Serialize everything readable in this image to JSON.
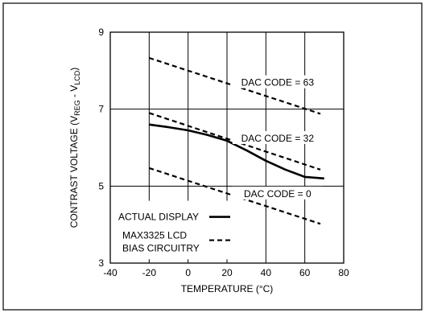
{
  "chart_data": {
    "type": "line",
    "xlabel": "TEMPERATURE (°C)",
    "ylabel": {
      "prefix": "CONTRAST VOLTAGE (V",
      "sub1": "REG",
      "mid": " - V",
      "sub2": "LCD",
      "suffix": ")"
    },
    "xlim": [
      -40,
      80
    ],
    "ylim": [
      3,
      9
    ],
    "xticks": [
      "-40",
      "-20",
      "0",
      "20",
      "40",
      "60",
      "80"
    ],
    "yticks": [
      "3",
      "5",
      "7",
      "9"
    ],
    "grid": true,
    "legend_position": "bottom-left",
    "series": [
      {
        "name": "ACTUAL DISPLAY",
        "style": "solid",
        "x": [
          -20,
          -10,
          0,
          10,
          20,
          30,
          40,
          50,
          60,
          70
        ],
        "y": [
          6.6,
          6.53,
          6.45,
          6.33,
          6.18,
          5.93,
          5.66,
          5.43,
          5.24,
          5.2
        ]
      },
      {
        "name": "DAC CODE = 63",
        "style": "dashed",
        "x": [
          -20,
          68
        ],
        "y": [
          8.33,
          6.88
        ]
      },
      {
        "name": "DAC CODE = 32",
        "style": "dashed",
        "x": [
          -20,
          68
        ],
        "y": [
          6.9,
          5.43
        ]
      },
      {
        "name": "DAC CODE = 0",
        "style": "dashed",
        "x": [
          -20,
          68
        ],
        "y": [
          5.47,
          4.02
        ]
      }
    ],
    "annotations": [
      "DAC CODE = 63",
      "DAC CODE = 32",
      "DAC CODE = 0"
    ],
    "legend": [
      {
        "label": "ACTUAL DISPLAY",
        "style": "solid"
      },
      {
        "label_lines": [
          "MAX3325 LCD",
          "BIAS CIRCUITRY"
        ],
        "style": "dashed"
      }
    ]
  }
}
